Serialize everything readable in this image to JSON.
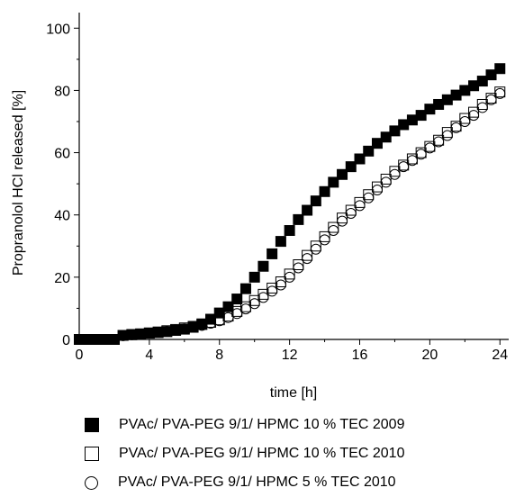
{
  "chart_data": {
    "type": "scatter",
    "title": "",
    "xlabel": "time [h]",
    "ylabel": "Propranolol HCl released [%]",
    "xlim": [
      0,
      24.5
    ],
    "ylim": [
      0,
      105
    ],
    "xticks": [
      0,
      4,
      8,
      12,
      16,
      20,
      24
    ],
    "yticks": [
      0,
      20,
      40,
      60,
      80,
      100
    ],
    "grid": false,
    "legend_position": "below",
    "series": [
      {
        "name": "PVAc/ PVA-PEG 9/1/ HPMC 10 % TEC 2009",
        "marker": "filled-square",
        "x": [
          0,
          0.5,
          1,
          1.5,
          2,
          2.5,
          3,
          3.5,
          4,
          4.5,
          5,
          5.5,
          6,
          6.5,
          7,
          7.5,
          8,
          8.5,
          9,
          9.5,
          10,
          10.5,
          11,
          11.5,
          12,
          12.5,
          13,
          13.5,
          14,
          14.5,
          15,
          15.5,
          16,
          16.5,
          17,
          17.5,
          18,
          18.5,
          19,
          19.5,
          20,
          20.5,
          21,
          21.5,
          22,
          22.5,
          23,
          23.5,
          24
        ],
        "y": [
          0,
          0,
          0,
          0,
          0,
          1.3,
          1.5,
          1.7,
          2,
          2.2,
          2.5,
          2.9,
          3.3,
          3.9,
          5,
          6.5,
          8.5,
          10.5,
          13,
          16.3,
          20,
          23.5,
          27.5,
          31.5,
          35,
          38.5,
          41.5,
          44.5,
          47.5,
          50.5,
          53,
          55.5,
          58,
          60.5,
          63,
          65,
          67,
          69,
          70.5,
          72,
          74,
          75.5,
          77,
          78.5,
          80,
          81.5,
          83,
          85,
          87
        ]
      },
      {
        "name": "PVAc/ PVA-PEG 9/1/ HPMC 10 % TEC 2010",
        "marker": "open-square",
        "x": [
          0,
          0.5,
          1,
          1.5,
          2,
          2.5,
          3,
          3.5,
          4,
          4.5,
          5,
          5.5,
          6,
          6.5,
          7,
          7.5,
          8,
          8.5,
          9,
          9.5,
          10,
          10.5,
          11,
          11.5,
          12,
          12.5,
          13,
          13.5,
          14,
          14.5,
          15,
          15.5,
          16,
          16.5,
          17,
          17.5,
          18,
          18.5,
          19,
          19.5,
          20,
          20.5,
          21,
          21.5,
          22,
          22.5,
          23,
          23.5,
          24
        ],
        "y": [
          0,
          0,
          0,
          0,
          0,
          1.3,
          1.6,
          1.8,
          2.1,
          2.4,
          2.8,
          3.2,
          3.7,
          4.2,
          4.8,
          5.5,
          6.3,
          7.5,
          9,
          10.5,
          12.5,
          14.5,
          16.5,
          18.5,
          21,
          24,
          27,
          30,
          33,
          36,
          39,
          41.5,
          44,
          46.5,
          49,
          51.5,
          54,
          56,
          58,
          60,
          62,
          64,
          66.5,
          68.5,
          71,
          73,
          75.5,
          77.5,
          79.5
        ]
      },
      {
        "name": "PVAc/ PVA-PEG 9/1/ HPMC 5 % TEC 2010",
        "marker": "open-circle",
        "x": [
          0,
          0.5,
          1,
          1.5,
          2,
          2.5,
          3,
          3.5,
          4,
          4.5,
          5,
          5.5,
          6,
          6.5,
          7,
          7.5,
          8,
          8.5,
          9,
          9.5,
          10,
          10.5,
          11,
          11.5,
          12,
          12.5,
          13,
          13.5,
          14,
          14.5,
          15,
          15.5,
          16,
          16.5,
          17,
          17.5,
          18,
          18.5,
          19,
          19.5,
          20,
          20.5,
          21,
          21.5,
          22,
          22.5,
          23,
          23.5,
          24
        ],
        "y": [
          0,
          0,
          0,
          0,
          0,
          1.2,
          1.5,
          1.7,
          2,
          2.3,
          2.6,
          3,
          3.4,
          3.9,
          4.5,
          5.2,
          6,
          7,
          8.3,
          9.8,
          11.5,
          13.5,
          15.5,
          17.5,
          20,
          23,
          26,
          29,
          32,
          35,
          38,
          40.5,
          43,
          45.5,
          48,
          50.5,
          53,
          55.5,
          57.5,
          59.5,
          61.5,
          63.5,
          65.5,
          68,
          70,
          72,
          74.5,
          77,
          79
        ]
      }
    ]
  }
}
